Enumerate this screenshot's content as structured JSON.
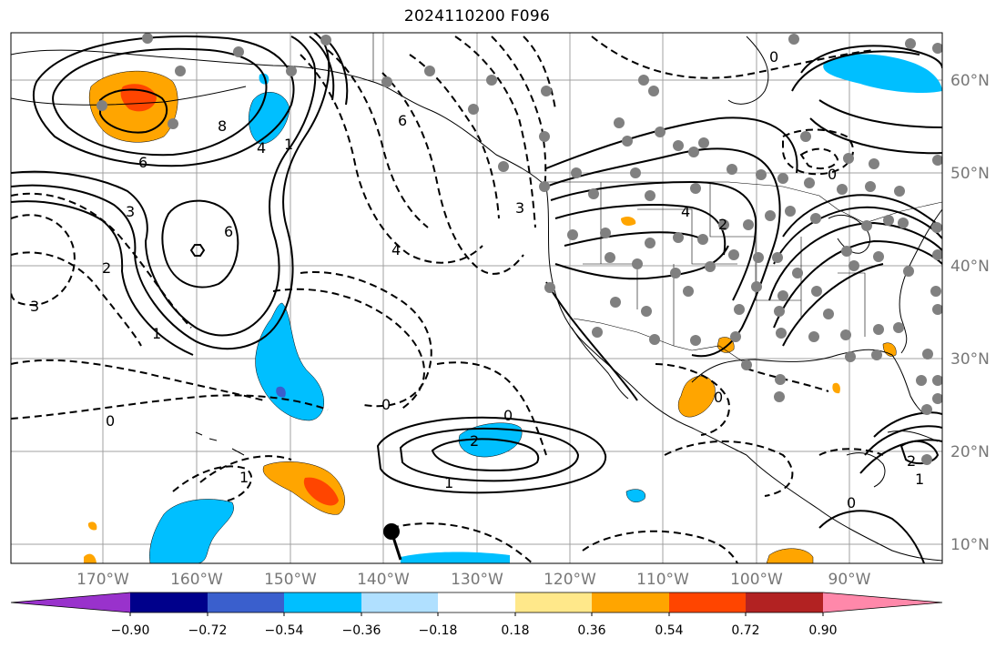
{
  "title": "2024110200 F096",
  "lat_labels": [
    "60°N",
    "50°N",
    "40°N",
    "30°N",
    "20°N",
    "10°N"
  ],
  "lon_labels": [
    "170°W",
    "160°W",
    "150°W",
    "140°W",
    "130°W",
    "120°W",
    "110°W",
    "100°W",
    "90°W"
  ],
  "colorbar": {
    "tick_labels": [
      "−0.90",
      "−0.72",
      "−0.54",
      "−0.36",
      "−0.18",
      "0.18",
      "0.36",
      "0.54",
      "0.72",
      "0.90"
    ],
    "colors": [
      "#9932cc",
      "#00008b",
      "#3a5fcd",
      "#00bfff",
      "#b0e0ff",
      "#ffffff",
      "#ffe88a",
      "#ffa500",
      "#ff4500",
      "#b22222",
      "#ff88aa"
    ]
  },
  "contour_labels": [
    "6",
    "8",
    "4",
    "1",
    "6",
    "3",
    "2",
    "3",
    "1",
    "6",
    "4",
    "3",
    "0",
    "0",
    "2",
    "1",
    "4",
    "0",
    "2",
    "0",
    "0",
    "0",
    "1",
    "0",
    "2",
    "1"
  ],
  "fill_colors": {
    "orange": "#ffa500",
    "red": "#ff4500",
    "cyan": "#00bfff",
    "blue": "#3a5fcd",
    "light_blue": "#b0e0ff"
  }
}
